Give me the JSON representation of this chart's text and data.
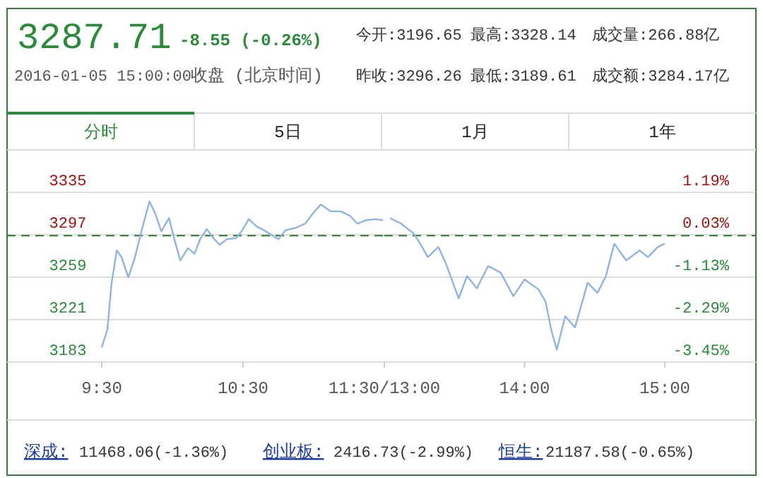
{
  "chart_data": [
    {
      "type": "line",
      "title": "3287.71",
      "subtitle": "-8.55 (-0.26%)",
      "annotations": [
        "2016-01-05 15:00:00",
        "收盘",
        "(北京时间)",
        "今开:3196.65",
        "最高:3328.14",
        "成交量:266.88亿",
        "昨收:3296.26",
        "最低:3189.61",
        "成交额:3284.17亿",
        "分时",
        "5日",
        "1月",
        "1年",
        "深成:",
        "11468.06(-1.36%)",
        "创业板:",
        "2416.73(-2.99%)",
        "恒生:",
        "21187.58(-0.65%)"
      ],
      "x": [
        9.5,
        9.54,
        9.57,
        9.607,
        9.64,
        9.688,
        9.731,
        9.781,
        9.838,
        9.882,
        9.922,
        9.976,
        10.016,
        10.056,
        10.11,
        10.156,
        10.2,
        10.244,
        10.29,
        10.334,
        10.384,
        10.45,
        10.49,
        10.54,
        10.6,
        10.65,
        10.7,
        10.75,
        10.8,
        10.87,
        10.94,
        11.0,
        11.05,
        11.12,
        11.19,
        11.256,
        11.31,
        11.37,
        11.44,
        11.49
      ],
      "series": [
        {
          "color": "#8fb4e3",
          "values": [
            3196,
            3212,
            3254,
            3283,
            3277,
            3259,
            3275,
            3300,
            3327,
            3315,
            3300,
            3312,
            3292,
            3274,
            3285,
            3280,
            3294,
            3302,
            3294,
            3288,
            3293,
            3294,
            3300,
            3311,
            3304,
            3301,
            3297,
            3293,
            3301,
            3303,
            3307,
            3317,
            3324,
            3318,
            3318,
            3314,
            3307,
            3310,
            3311,
            3310
          ]
        }
      ],
      "xlim": [
        8.83,
        11.5
      ],
      "xticks": [
        {
          "value": 9.5,
          "label": "9:30"
        },
        {
          "value": 10.5,
          "label": "10:30"
        },
        {
          "value": 11.5,
          "label": "11:30/13:00"
        }
      ],
      "ylim": [
        3183,
        3335
      ],
      "yticks": [
        3335,
        3297,
        3259,
        3221,
        3183
      ],
      "ref_lines": [
        {
          "axis": "y",
          "value": 3296.26,
          "color": "#2a7a2a",
          "line_style": "dashed"
        }
      ],
      "grid": "y",
      "line_style": "solid"
    },
    {
      "type": "line",
      "x": [
        13.04,
        13.12,
        13.21,
        13.26,
        13.31,
        13.385,
        13.44,
        13.53,
        13.59,
        13.66,
        13.74,
        13.83,
        13.92,
        14.0,
        14.1,
        14.15,
        14.19,
        14.23,
        14.29,
        14.36,
        14.45,
        14.52,
        14.58,
        14.64,
        14.725,
        14.82,
        14.88,
        14.95,
        15.0
      ],
      "series": [
        {
          "color": "#8fb4e3",
          "values": [
            3312,
            3307,
            3298,
            3288,
            3277,
            3286,
            3271,
            3240,
            3260,
            3249,
            3269,
            3263,
            3242,
            3257,
            3248,
            3237,
            3212,
            3194,
            3224,
            3214,
            3254,
            3245,
            3260,
            3289,
            3274,
            3283,
            3277,
            3286,
            3289
          ]
        }
      ],
      "xlim": [
        13,
        15.65
      ],
      "xticks": [
        {
          "value": 13,
          "label": null
        },
        {
          "value": 14,
          "label": "14:00"
        },
        {
          "value": 15,
          "label": "15:00"
        }
      ],
      "ylim": [
        3183,
        3335
      ],
      "yticks": [
        3335,
        3297,
        3259,
        3221,
        3183
      ],
      "tick_labels": "x",
      "y2lim": [
        -3.45,
        1.19
      ],
      "y2ticks": [
        {
          "value": 1.19,
          "label": "1.19%"
        },
        {
          "value": 0.03,
          "label": "0.03%"
        },
        {
          "value": -1.13,
          "label": "-1.13%"
        },
        {
          "value": -2.29,
          "label": "-2.29%"
        },
        {
          "value": -3.45,
          "label": "-3.45%"
        }
      ],
      "ref_lines": [
        {
          "axis": "y",
          "value": 3296.26,
          "color": "#2a7a2a",
          "line_style": "dashed"
        }
      ],
      "grid": "y",
      "line_style": "solid"
    }
  ]
}
